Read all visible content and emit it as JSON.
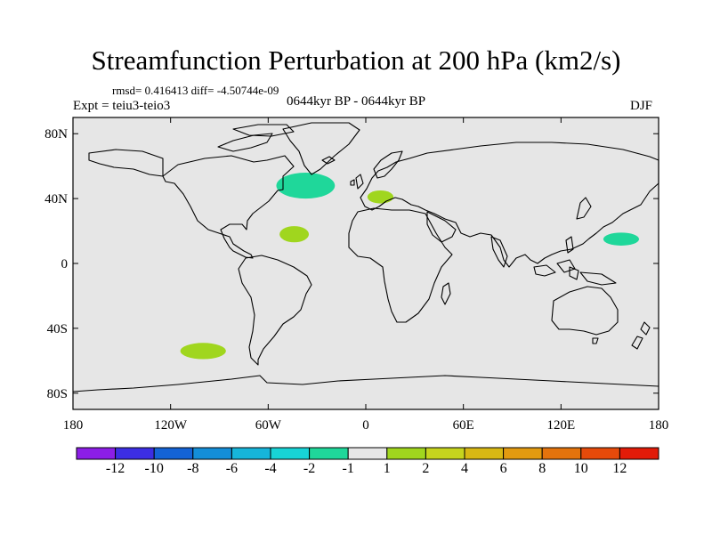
{
  "title": "Streamfunction Perturbation at 200 hPa (km2/s)",
  "rmsd_line": "rmsd= 0.416413 diff= -4.50744e-09",
  "left_subtitle": "Expt = teiu3-teio3",
  "center_subtitle": "0644kyr BP - 0644kyr BP",
  "right_subtitle": "DJF",
  "map": {
    "background_color": "#e6e6e6",
    "lat_tick_labels": [
      "80N",
      "40N",
      "0",
      "40S",
      "80S"
    ],
    "lat_tick_values": [
      80,
      40,
      0,
      -40,
      -80
    ],
    "lon_tick_labels": [
      "180",
      "120W",
      "60W",
      "0",
      "60E",
      "120E",
      "180"
    ],
    "lon_tick_values": [
      -180,
      -120,
      -60,
      0,
      60,
      120,
      180
    ],
    "anomalies": [
      {
        "name": "north-atlantic",
        "lon": -37,
        "lat": 48,
        "rx_deg": 18,
        "ry_deg": 8,
        "color": "#1fd79a"
      },
      {
        "name": "subtropical-atlantic",
        "lon": -44,
        "lat": 18,
        "rx_deg": 9,
        "ry_deg": 5,
        "color": "#a0d61e"
      },
      {
        "name": "mediterranean",
        "lon": 9,
        "lat": 41,
        "rx_deg": 8,
        "ry_deg": 4,
        "color": "#a0d61e"
      },
      {
        "name": "west-pacific",
        "lon": 157,
        "lat": 15,
        "rx_deg": 11,
        "ry_deg": 4,
        "color": "#1fd79a"
      },
      {
        "name": "south-pacific",
        "lon": -100,
        "lat": -54,
        "rx_deg": 14,
        "ry_deg": 5,
        "color": "#a0d61e"
      }
    ]
  },
  "colorbar": {
    "colors": [
      "#8c1ee6",
      "#3c2ee3",
      "#1463d6",
      "#148ed8",
      "#16b5da",
      "#17d3d6",
      "#1fd79a",
      "#e6e6e6",
      "#a0d61e",
      "#c6d41e",
      "#d8b814",
      "#e29a10",
      "#e4730c",
      "#e64a0a",
      "#e21b08"
    ],
    "labels": [
      "-12",
      "-10",
      "-8",
      "-6",
      "-4",
      "-2",
      "-1",
      "1",
      "2",
      "4",
      "6",
      "8",
      "10",
      "12"
    ]
  }
}
